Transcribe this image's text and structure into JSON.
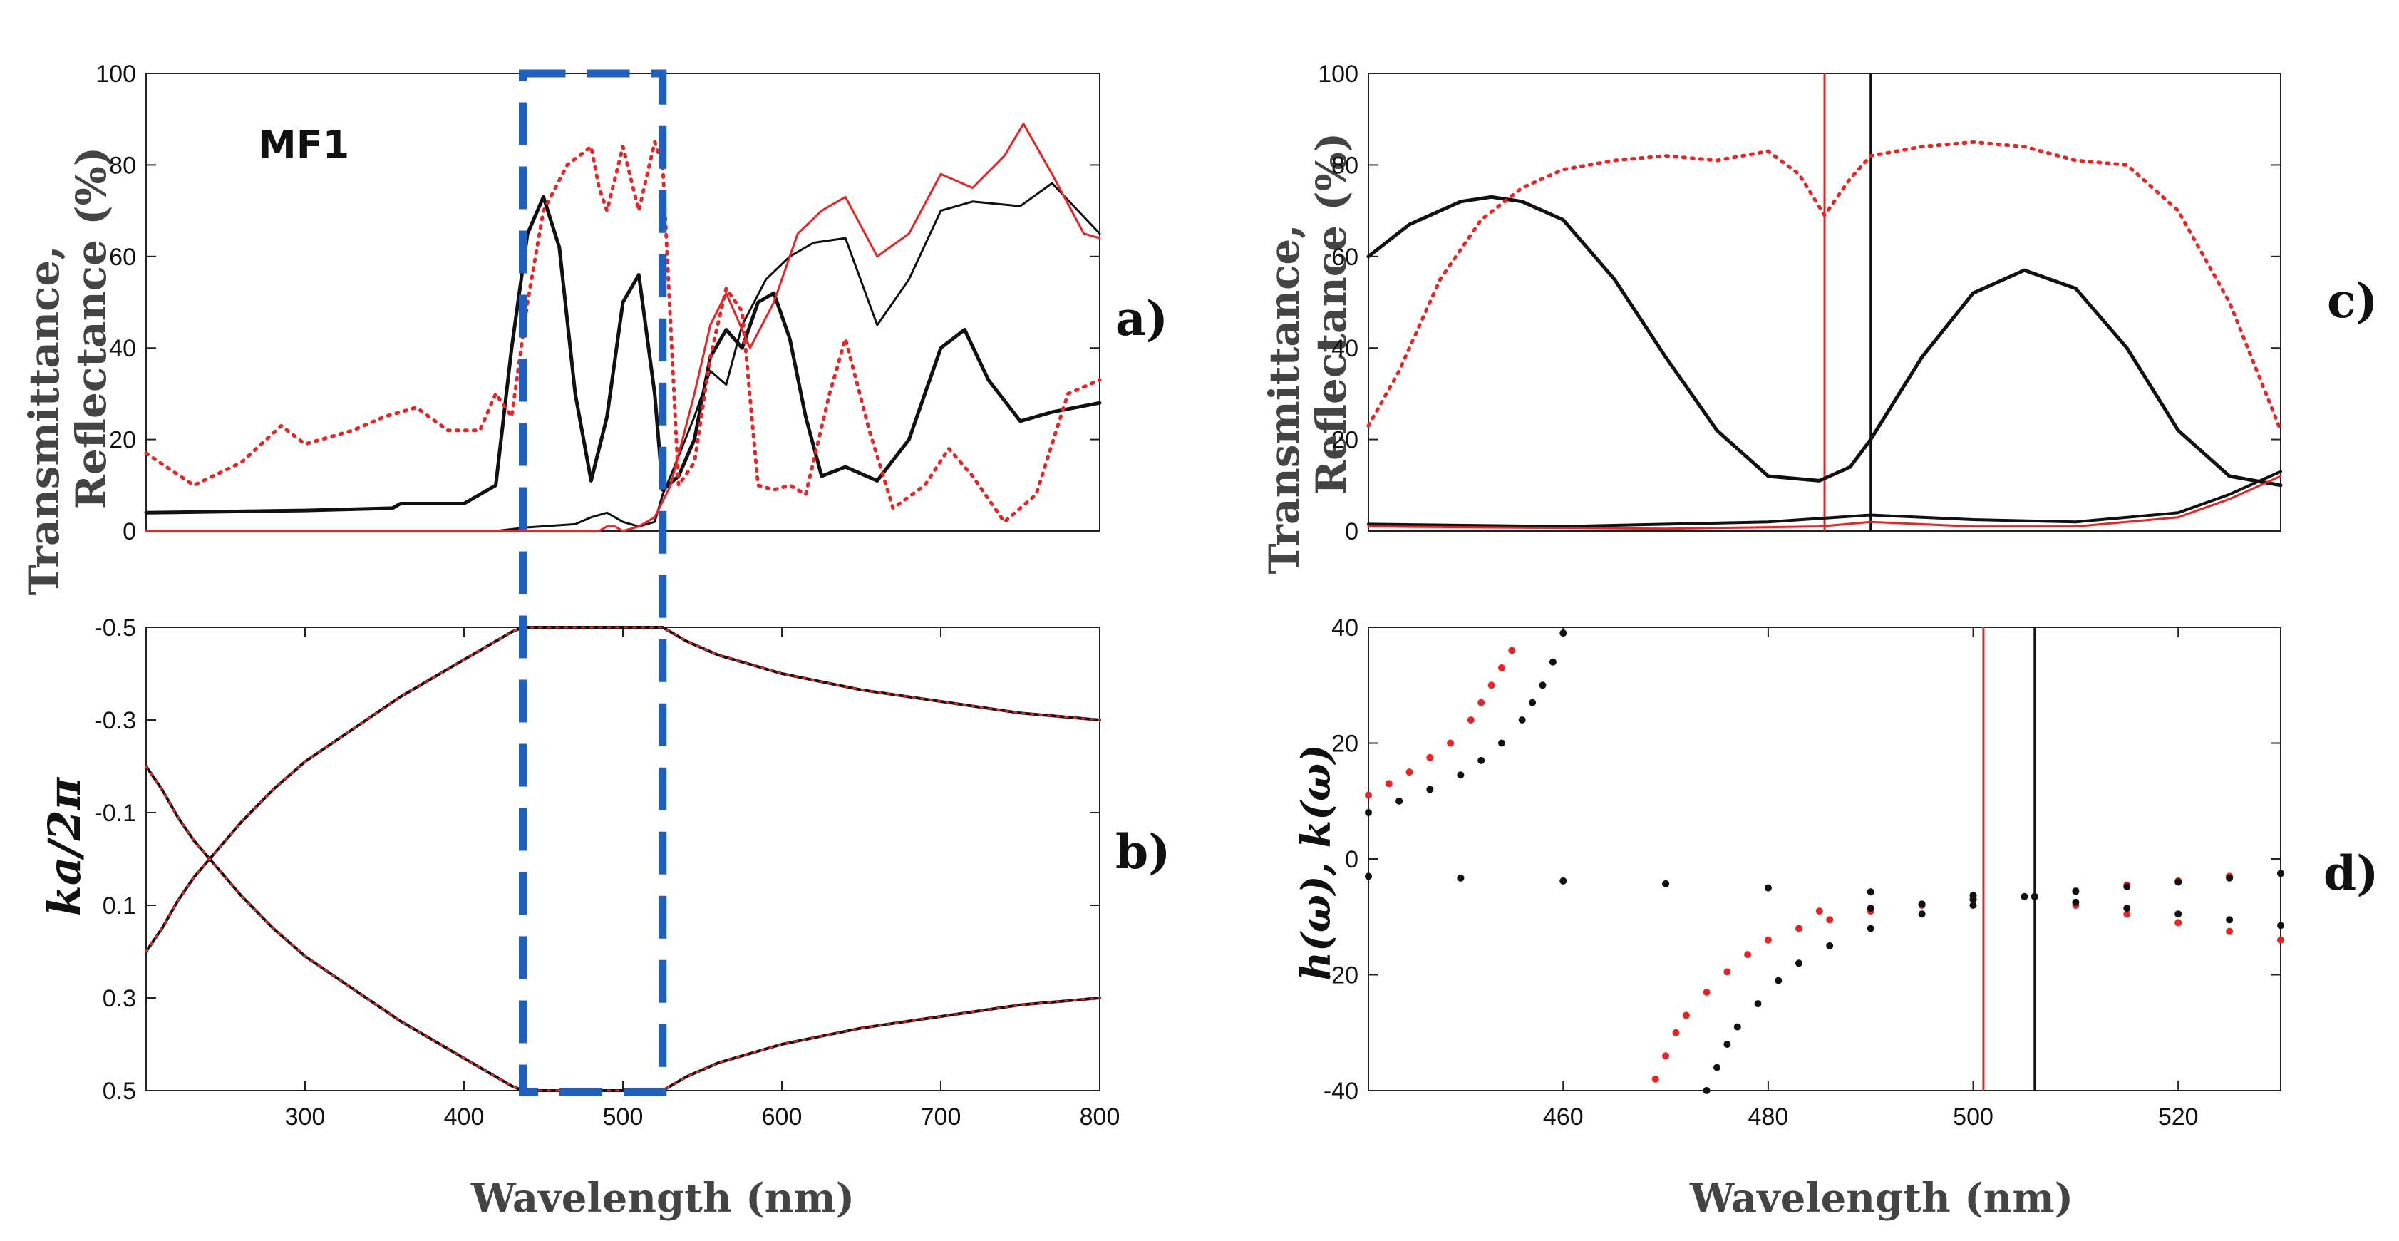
{
  "figure": {
    "x_axis_label": "Wavelength (nm)",
    "y_label_line1": "Transmittance,",
    "y_label_line2": "Reflectance (%)",
    "y_label_b": "ka/2π",
    "y_label_d": "h(ω), k(ω)",
    "panel_a_letter": "a)",
    "panel_b_letter": "b)",
    "panel_c_letter": "c)",
    "panel_d_letter": "d)",
    "sample_label": "MF1",
    "colors": {
      "black": "#111111",
      "red": "#ee2222",
      "blue_box": "#1f5fc0"
    }
  },
  "chart_data": [
    {
      "id": "a",
      "type": "line",
      "title": "",
      "annotation": "MF1",
      "xlabel": "",
      "ylabel": "Transmittance, Reflectance (%)",
      "xlim": [
        200,
        800
      ],
      "ylim": [
        0,
        100
      ],
      "yticks": [
        0,
        20,
        40,
        60,
        80,
        100
      ],
      "highlight_band_nm": [
        437,
        525
      ],
      "series": [
        {
          "name": "transmittance black thick",
          "color": "#111111",
          "style": "solid",
          "width": 5,
          "x": [
            200,
            300,
            355,
            360,
            400,
            420,
            430,
            440,
            450,
            460,
            470,
            480,
            490,
            500,
            510,
            520,
            525,
            535,
            545,
            555,
            565,
            575,
            585,
            595,
            605,
            615,
            625,
            640,
            660,
            680,
            700,
            715,
            730,
            750,
            770,
            800
          ],
          "y": [
            4,
            4.5,
            5,
            6,
            6,
            10,
            40,
            65,
            73,
            62,
            30,
            11,
            25,
            50,
            56,
            30,
            9,
            12,
            20,
            38,
            44,
            40,
            50,
            52,
            42,
            25,
            12,
            14,
            11,
            20,
            40,
            44,
            33,
            24,
            26,
            28
          ]
        },
        {
          "name": "transmittance black thin",
          "color": "#111111",
          "style": "solid",
          "width": 3,
          "x": [
            200,
            420,
            440,
            470,
            480,
            490,
            500,
            510,
            520,
            525,
            530,
            545,
            555,
            565,
            575,
            590,
            605,
            620,
            640,
            660,
            680,
            700,
            720,
            750,
            770,
            800
          ],
          "y": [
            0,
            0,
            0.8,
            1.5,
            3,
            4,
            2,
            1,
            2,
            8,
            12,
            25,
            35,
            32,
            45,
            55,
            60,
            63,
            64,
            45,
            55,
            70,
            72,
            71,
            76,
            65
          ]
        },
        {
          "name": "reflectance red solid",
          "color": "#ee2222",
          "style": "solid",
          "width": 3,
          "x": [
            200,
            420,
            470,
            485,
            490,
            495,
            500,
            510,
            520,
            530,
            545,
            555,
            565,
            580,
            595,
            610,
            625,
            640,
            660,
            680,
            700,
            720,
            740,
            752,
            770,
            790,
            800
          ],
          "y": [
            0,
            0,
            0,
            0,
            1,
            1,
            0,
            1,
            3,
            10,
            30,
            45,
            52,
            40,
            50,
            65,
            70,
            73,
            60,
            65,
            78,
            75,
            82,
            89,
            78,
            65,
            64
          ]
        },
        {
          "name": "reflectance red dotted",
          "color": "#ee2222",
          "style": "dotted",
          "width": 5,
          "x": [
            200,
            230,
            260,
            285,
            300,
            330,
            350,
            370,
            390,
            410,
            420,
            430,
            440,
            450,
            465,
            480,
            485,
            490,
            500,
            510,
            520,
            525,
            535,
            545,
            555,
            565,
            575,
            585,
            595,
            605,
            615,
            630,
            640,
            655,
            670,
            690,
            705,
            720,
            740,
            760,
            780,
            800
          ],
          "y": [
            17,
            10,
            15,
            23,
            19,
            22,
            25,
            27,
            22,
            22,
            30,
            25,
            50,
            70,
            80,
            84,
            75,
            70,
            84,
            70,
            85,
            80,
            10,
            15,
            38,
            53,
            48,
            10,
            9,
            10,
            8,
            30,
            42,
            22,
            5,
            10,
            18,
            12,
            2,
            8,
            30,
            33
          ]
        }
      ]
    },
    {
      "id": "b",
      "type": "line",
      "title": "",
      "xlabel": "Wavelength (nm)",
      "ylabel": "ka/2π",
      "xlim": [
        200,
        800
      ],
      "ylim": [
        -0.5,
        0.5
      ],
      "y_inverted": true,
      "xticks": [
        300,
        400,
        500,
        600,
        700,
        800
      ],
      "yticks": [
        -0.5,
        -0.3,
        -0.1,
        0.1,
        0.3,
        0.5
      ],
      "highlight_band_nm": [
        437,
        525
      ],
      "series": [
        {
          "name": "band upper branch black",
          "color": "#111111",
          "style": "solid",
          "width": 4,
          "x": [
            200,
            210,
            220,
            230,
            240,
            260,
            280,
            300,
            330,
            360,
            390,
            410,
            430,
            437,
            470,
            500,
            525,
            540,
            560,
            600,
            650,
            700,
            750,
            800
          ],
          "y": [
            -0.2,
            -0.15,
            -0.09,
            -0.04,
            0.0,
            -0.08,
            -0.15,
            -0.21,
            -0.28,
            -0.35,
            -0.41,
            -0.45,
            -0.49,
            -0.5,
            -0.5,
            -0.5,
            -0.5,
            -0.47,
            -0.44,
            -0.4,
            -0.365,
            -0.34,
            -0.315,
            -0.3
          ]
        },
        {
          "name": "band lower branch black",
          "color": "#111111",
          "style": "solid",
          "width": 4,
          "x": [
            200,
            210,
            220,
            230,
            240,
            260,
            280,
            300,
            330,
            360,
            390,
            410,
            430,
            437,
            470,
            500,
            525,
            540,
            560,
            600,
            650,
            700,
            750,
            800
          ],
          "y": [
            0.2,
            0.15,
            0.09,
            0.04,
            0.0,
            0.08,
            0.15,
            0.21,
            0.28,
            0.35,
            0.41,
            0.45,
            0.49,
            0.5,
            0.5,
            0.5,
            0.5,
            0.47,
            0.44,
            0.4,
            0.365,
            0.34,
            0.315,
            0.3
          ]
        },
        {
          "name": "band upper branch red",
          "color": "#ee2222",
          "style": "dotted",
          "width": 3,
          "x": [
            200,
            210,
            220,
            230,
            240,
            260,
            280,
            300,
            330,
            360,
            390,
            410,
            430,
            437,
            470,
            500,
            525,
            540,
            560,
            600,
            650,
            700,
            750,
            800
          ],
          "y": [
            -0.2,
            -0.15,
            -0.09,
            -0.04,
            0.0,
            -0.08,
            -0.15,
            -0.21,
            -0.28,
            -0.35,
            -0.41,
            -0.45,
            -0.49,
            -0.5,
            -0.5,
            -0.5,
            -0.5,
            -0.47,
            -0.44,
            -0.4,
            -0.365,
            -0.34,
            -0.315,
            -0.3
          ]
        },
        {
          "name": "band lower branch red",
          "color": "#ee2222",
          "style": "dotted",
          "width": 3,
          "x": [
            200,
            210,
            220,
            230,
            240,
            260,
            280,
            300,
            330,
            360,
            390,
            410,
            430,
            437,
            470,
            500,
            525,
            540,
            560,
            600,
            650,
            700,
            750,
            800
          ],
          "y": [
            0.2,
            0.15,
            0.09,
            0.04,
            0.0,
            0.08,
            0.15,
            0.21,
            0.28,
            0.35,
            0.41,
            0.45,
            0.49,
            0.5,
            0.5,
            0.5,
            0.5,
            0.47,
            0.44,
            0.4,
            0.365,
            0.34,
            0.315,
            0.3
          ]
        }
      ],
      "xtick_labels": [
        "300",
        "400",
        "500",
        "600",
        "700",
        "800"
      ],
      "ytick_labels": [
        "-0.5",
        "-0.3",
        "-0.1",
        "0.1",
        "0.3",
        "0.5"
      ]
    },
    {
      "id": "c",
      "type": "line",
      "title": "",
      "xlabel": "",
      "ylabel": "Transmittance, Reflectance (%)",
      "xlim": [
        441,
        530
      ],
      "ylim": [
        0,
        100
      ],
      "yticks": [
        0,
        20,
        40,
        60,
        80,
        100
      ],
      "vlines": [
        {
          "x": 485.5,
          "color": "#ee2222"
        },
        {
          "x": 490,
          "color": "#111111"
        }
      ],
      "series": [
        {
          "name": "transmittance black thick",
          "color": "#111111",
          "style": "solid",
          "width": 5,
          "x": [
            441,
            445,
            450,
            453,
            456,
            460,
            465,
            470,
            475,
            480,
            485,
            488,
            490,
            495,
            500,
            505,
            510,
            515,
            520,
            525,
            530
          ],
          "y": [
            60,
            67,
            72,
            73,
            72,
            68,
            55,
            38,
            22,
            12,
            11,
            14,
            20,
            38,
            52,
            57,
            53,
            40,
            22,
            12,
            10
          ]
        },
        {
          "name": "transmittance black thin",
          "color": "#111111",
          "style": "solid",
          "width": 4,
          "x": [
            441,
            460,
            480,
            490,
            500,
            510,
            520,
            525,
            530
          ],
          "y": [
            1.5,
            1,
            2,
            3.5,
            2.5,
            2,
            4,
            8,
            13
          ]
        },
        {
          "name": "reflectance red solid",
          "color": "#ee2222",
          "style": "solid",
          "width": 3,
          "x": [
            441,
            470,
            485,
            490,
            500,
            510,
            520,
            525,
            530
          ],
          "y": [
            1,
            0.5,
            1,
            2,
            1,
            1,
            3,
            7,
            12
          ]
        },
        {
          "name": "reflectance red dotted",
          "color": "#ee2222",
          "style": "dotted",
          "width": 5,
          "x": [
            441,
            444,
            448,
            452,
            456,
            460,
            465,
            470,
            475,
            480,
            483,
            485.5,
            488,
            490,
            495,
            500,
            505,
            510,
            515,
            520,
            525,
            530
          ],
          "y": [
            23,
            35,
            55,
            68,
            75,
            79,
            81,
            82,
            81,
            83,
            78,
            69,
            77,
            82,
            84,
            85,
            84,
            81,
            80,
            70,
            50,
            22
          ]
        }
      ],
      "ytick_labels": [
        "0",
        "20",
        "40",
        "60",
        "80",
        "100"
      ]
    },
    {
      "id": "d",
      "type": "scatter",
      "title": "",
      "xlabel": "Wavelength (nm)",
      "ylabel": "h(ω), k(ω)",
      "xlim": [
        441,
        530
      ],
      "ylim": [
        -40,
        40
      ],
      "xticks": [
        460,
        480,
        500,
        520
      ],
      "yticks": [
        -40,
        -20,
        0,
        20,
        40
      ],
      "vlines": [
        {
          "x": 501,
          "color": "#ee2222"
        },
        {
          "x": 506,
          "color": "#111111"
        }
      ],
      "series": [
        {
          "name": "upper branch red",
          "color": "#ee2222",
          "x": [
            441,
            443,
            445,
            447,
            449,
            451,
            452,
            453,
            454,
            455
          ],
          "y": [
            11,
            13,
            15,
            17.5,
            20,
            24,
            27,
            30,
            33,
            36
          ]
        },
        {
          "name": "upper branch black",
          "color": "#111111",
          "x": [
            441,
            444,
            447,
            450,
            452,
            454,
            456,
            457,
            458,
            459,
            460
          ],
          "y": [
            8,
            10,
            12,
            14.5,
            17,
            20,
            24,
            27,
            30,
            34,
            39
          ]
        },
        {
          "name": "lower branch red",
          "color": "#ee2222",
          "x": [
            469,
            470,
            471,
            472,
            474,
            476,
            478,
            480,
            483,
            486,
            490,
            495,
            500,
            505
          ],
          "y": [
            -38,
            -34,
            -30,
            -27,
            -23,
            -19.5,
            -16.5,
            -14,
            -12,
            -10.5,
            -9,
            -8,
            -7,
            -6.5
          ]
        },
        {
          "name": "lower branch black",
          "color": "#111111",
          "x": [
            474,
            475,
            476,
            477,
            479,
            481,
            483,
            486,
            490,
            495,
            500,
            505
          ],
          "y": [
            -40,
            -36,
            -32,
            -29,
            -25,
            -21,
            -18,
            -15,
            -12,
            -9.5,
            -8,
            -6.5
          ]
        },
        {
          "name": "diagonal red descending",
          "color": "#ee2222",
          "x": [
            441,
            450,
            460,
            470,
            480,
            490,
            500,
            506,
            510,
            515,
            520,
            525,
            530
          ],
          "y": [
            -3,
            -3.3,
            -3.8,
            -4.3,
            -5,
            -5.7,
            -6.3,
            -6.5,
            -8,
            -9.5,
            -11,
            -12.5,
            -14
          ]
        },
        {
          "name": "diagonal black descending",
          "color": "#111111",
          "x": [
            441,
            450,
            460,
            470,
            480,
            490,
            500,
            506,
            510,
            515,
            520,
            525,
            530
          ],
          "y": [
            -3,
            -3.3,
            -3.8,
            -4.3,
            -5,
            -5.7,
            -6.3,
            -6.5,
            -7.5,
            -8.5,
            -9.5,
            -10.5,
            -11.5
          ]
        },
        {
          "name": "diagonal red ascending",
          "color": "#ee2222",
          "x": [
            485,
            490,
            495,
            500,
            506,
            510,
            515,
            520,
            525,
            530
          ],
          "y": [
            -9,
            -8.5,
            -7.8,
            -7,
            -6.5,
            -5.5,
            -4.5,
            -3.8,
            -3,
            -2.5
          ]
        },
        {
          "name": "diagonal black ascending",
          "color": "#111111",
          "x": [
            490,
            495,
            500,
            506,
            510,
            515,
            520,
            525,
            530
          ],
          "y": [
            -8.5,
            -7.8,
            -7,
            -6.5,
            -5.6,
            -4.8,
            -4,
            -3.3,
            -2.5
          ]
        }
      ],
      "xtick_labels": [
        "460",
        "480",
        "500",
        "520"
      ],
      "ytick_labels": [
        "-40",
        "-20",
        "0",
        "20",
        "40"
      ]
    }
  ]
}
